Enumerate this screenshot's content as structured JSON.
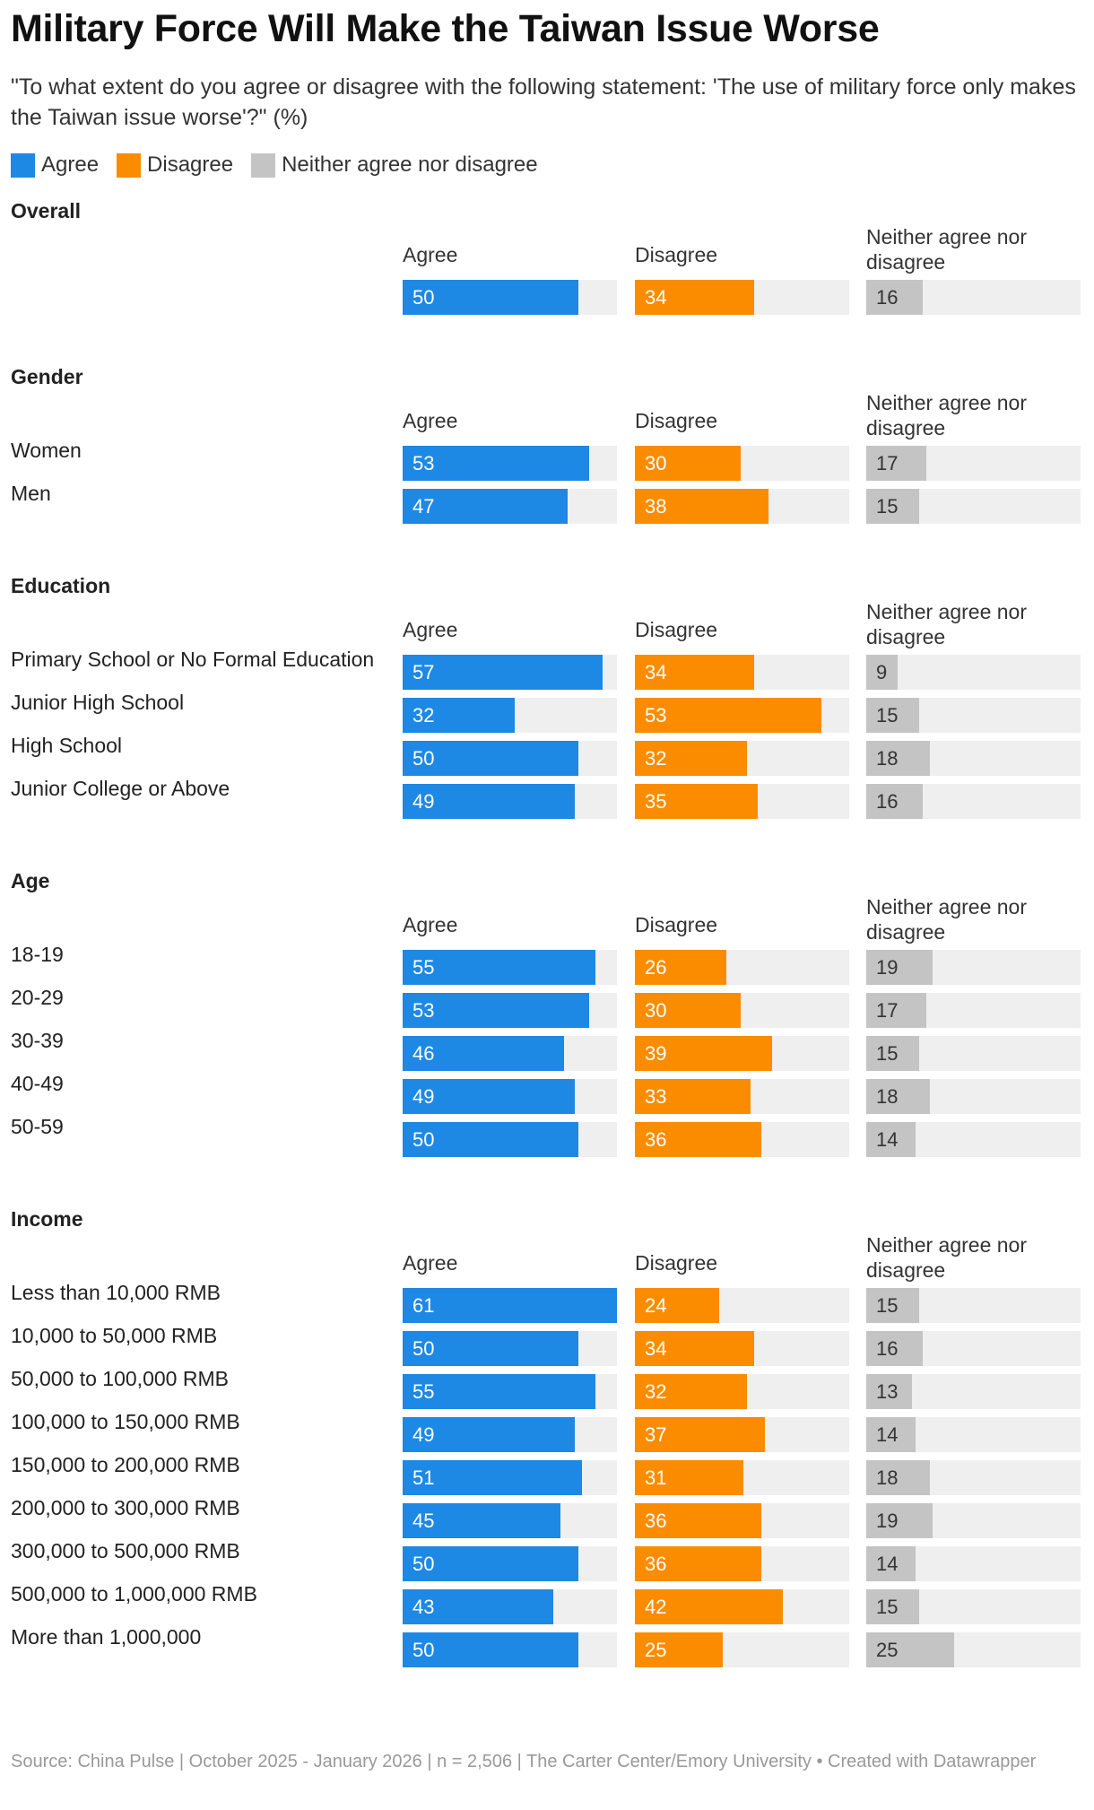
{
  "title": "Military Force Will Make the Taiwan Issue Worse",
  "subtitle": "\"To what extent do you agree or disagree with the following statement: 'The use of military force only makes the Taiwan issue worse'?\" (%)",
  "legend": [
    {
      "label": "Agree",
      "color": "#1e88e5"
    },
    {
      "label": "Disagree",
      "color": "#fb8c00"
    },
    {
      "label": "Neither agree nor disagree",
      "color": "#c4c4c4"
    }
  ],
  "footer": "Source: China Pulse | October 2025 - January 2026 | n = 2,506 | The Carter Center/Emory University • Created with Datawrapper",
  "chart_data": {
    "type": "bar",
    "max": 61,
    "columns": [
      "Agree",
      "Disagree",
      "Neither agree nor disagree"
    ],
    "colors": [
      "#1e88e5",
      "#fb8c00",
      "#c4c4c4"
    ],
    "value_text_colors": [
      "#ffffff",
      "#ffffff",
      "#333333"
    ],
    "groups": [
      {
        "name": "Overall",
        "rows": [
          {
            "label": "",
            "values": [
              50,
              34,
              16
            ]
          }
        ]
      },
      {
        "name": "Gender",
        "rows": [
          {
            "label": "Women",
            "values": [
              53,
              30,
              17
            ]
          },
          {
            "label": "Men",
            "values": [
              47,
              38,
              15
            ]
          }
        ]
      },
      {
        "name": "Education",
        "rows": [
          {
            "label": "Primary School or No Formal Education",
            "values": [
              57,
              34,
              9
            ]
          },
          {
            "label": "Junior High School",
            "values": [
              32,
              53,
              15
            ]
          },
          {
            "label": "High School",
            "values": [
              50,
              32,
              18
            ]
          },
          {
            "label": "Junior College or Above",
            "values": [
              49,
              35,
              16
            ]
          }
        ]
      },
      {
        "name": "Age",
        "rows": [
          {
            "label": "18-19",
            "values": [
              55,
              26,
              19
            ]
          },
          {
            "label": "20-29",
            "values": [
              53,
              30,
              17
            ]
          },
          {
            "label": "30-39",
            "values": [
              46,
              39,
              15
            ]
          },
          {
            "label": "40-49",
            "values": [
              49,
              33,
              18
            ]
          },
          {
            "label": "50-59",
            "values": [
              50,
              36,
              14
            ]
          }
        ]
      },
      {
        "name": "Income",
        "rows": [
          {
            "label": "Less than 10,000 RMB",
            "values": [
              61,
              24,
              15
            ]
          },
          {
            "label": "10,000 to 50,000 RMB",
            "values": [
              50,
              34,
              16
            ]
          },
          {
            "label": "50,000 to 100,000 RMB",
            "values": [
              55,
              32,
              13
            ]
          },
          {
            "label": "100,000 to 150,000 RMB",
            "values": [
              49,
              37,
              14
            ]
          },
          {
            "label": "150,000 to 200,000 RMB",
            "values": [
              51,
              31,
              18
            ]
          },
          {
            "label": "200,000 to 300,000 RMB",
            "values": [
              45,
              36,
              19
            ]
          },
          {
            "label": "300,000 to 500,000 RMB",
            "values": [
              50,
              36,
              14
            ]
          },
          {
            "label": "500,000 to 1,000,000 RMB",
            "values": [
              43,
              42,
              15
            ]
          },
          {
            "label": "More than 1,000,000",
            "values": [
              50,
              25,
              25
            ]
          }
        ]
      }
    ]
  }
}
